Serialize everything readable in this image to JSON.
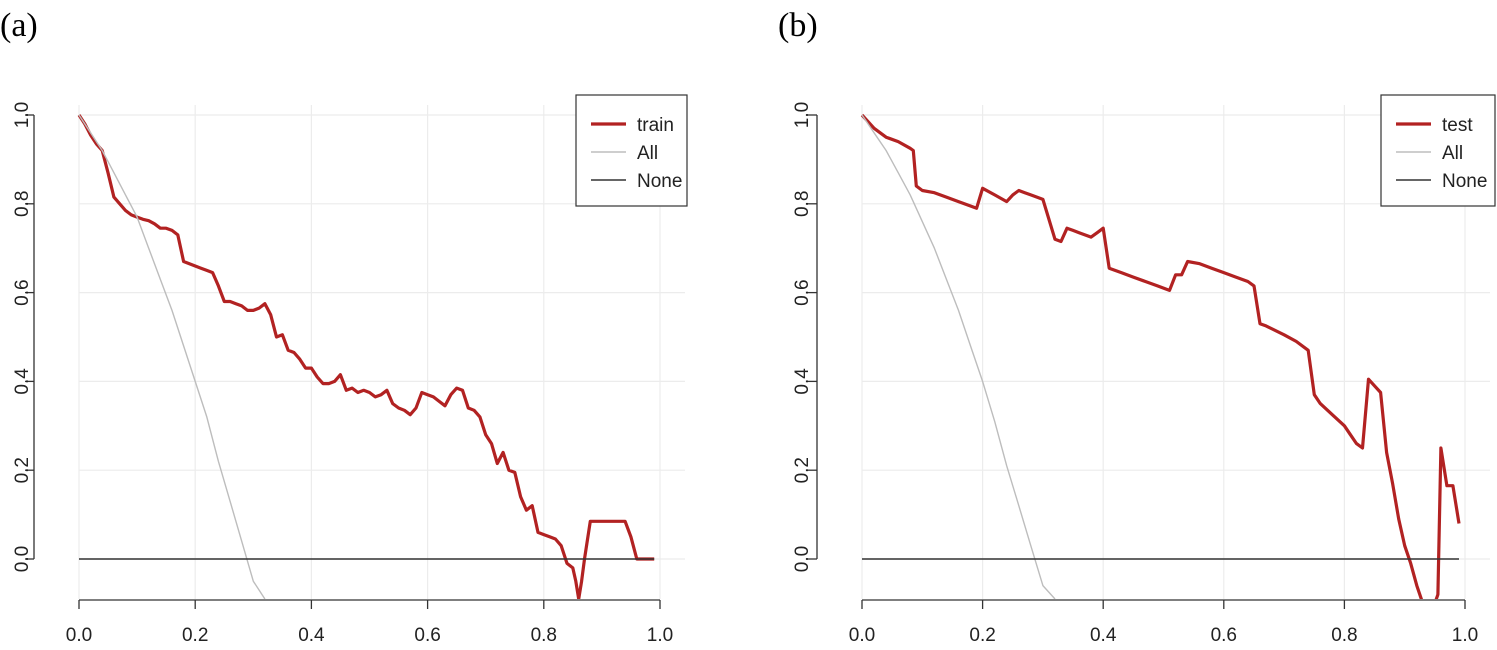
{
  "panels": [
    {
      "label": "(a)"
    },
    {
      "label": "(b)"
    }
  ],
  "colors": {
    "model": "#b22222",
    "all": "#bdbdbd",
    "none": "#333333",
    "grid": "#ececec"
  },
  "chart_data": [
    {
      "type": "line",
      "panel": "(a)",
      "xlim": [
        0,
        1
      ],
      "ylim": [
        -0.09,
        1.0
      ],
      "xticks": [
        "0.0",
        "0.2",
        "0.4",
        "0.6",
        "0.8",
        "1.0"
      ],
      "yticks": [
        "0.0",
        "0.2",
        "0.4",
        "0.6",
        "0.8",
        "1.0"
      ],
      "grid": true,
      "legend": {
        "position": "top-right",
        "entries": [
          "train",
          "All",
          "None"
        ]
      },
      "series": [
        {
          "name": "train",
          "x": [
            0.0,
            0.01,
            0.02,
            0.03,
            0.04,
            0.05,
            0.06,
            0.07,
            0.08,
            0.09,
            0.1,
            0.11,
            0.12,
            0.13,
            0.14,
            0.15,
            0.16,
            0.17,
            0.18,
            0.19,
            0.2,
            0.21,
            0.22,
            0.23,
            0.24,
            0.25,
            0.26,
            0.27,
            0.28,
            0.29,
            0.3,
            0.31,
            0.32,
            0.33,
            0.34,
            0.35,
            0.36,
            0.37,
            0.38,
            0.39,
            0.4,
            0.41,
            0.42,
            0.43,
            0.44,
            0.45,
            0.46,
            0.47,
            0.48,
            0.49,
            0.5,
            0.51,
            0.52,
            0.53,
            0.54,
            0.55,
            0.56,
            0.57,
            0.58,
            0.59,
            0.6,
            0.61,
            0.62,
            0.63,
            0.64,
            0.65,
            0.66,
            0.67,
            0.68,
            0.69,
            0.7,
            0.71,
            0.72,
            0.73,
            0.74,
            0.75,
            0.76,
            0.77,
            0.78,
            0.79,
            0.8,
            0.81,
            0.82,
            0.83,
            0.84,
            0.85,
            0.855,
            0.86,
            0.865,
            0.87,
            0.88,
            0.9,
            0.92,
            0.93,
            0.94,
            0.95,
            0.96,
            0.97,
            0.98,
            0.99
          ],
          "y": [
            1.0,
            0.98,
            0.955,
            0.935,
            0.92,
            0.87,
            0.815,
            0.8,
            0.785,
            0.775,
            0.77,
            0.765,
            0.762,
            0.755,
            0.745,
            0.745,
            0.74,
            0.73,
            0.67,
            0.665,
            0.66,
            0.655,
            0.65,
            0.645,
            0.615,
            0.58,
            0.58,
            0.575,
            0.57,
            0.56,
            0.56,
            0.565,
            0.575,
            0.55,
            0.5,
            0.505,
            0.47,
            0.465,
            0.45,
            0.43,
            0.43,
            0.41,
            0.395,
            0.395,
            0.4,
            0.415,
            0.38,
            0.385,
            0.375,
            0.38,
            0.375,
            0.365,
            0.37,
            0.38,
            0.35,
            0.34,
            0.335,
            0.325,
            0.34,
            0.375,
            0.37,
            0.365,
            0.355,
            0.345,
            0.37,
            0.385,
            0.38,
            0.34,
            0.335,
            0.32,
            0.28,
            0.26,
            0.215,
            0.24,
            0.2,
            0.195,
            0.14,
            0.11,
            0.12,
            0.06,
            0.055,
            0.05,
            0.045,
            0.03,
            -0.01,
            -0.02,
            -0.05,
            -0.09,
            -0.05,
            0.0,
            0.085,
            0.085,
            0.085,
            0.085,
            0.085,
            0.05,
            0.0,
            0.0,
            0.0,
            0.0
          ]
        },
        {
          "name": "All",
          "x": [
            0.0,
            0.02,
            0.04,
            0.06,
            0.08,
            0.1,
            0.12,
            0.14,
            0.16,
            0.18,
            0.2,
            0.22,
            0.24,
            0.26,
            0.28,
            0.3,
            0.32
          ],
          "y": [
            1.0,
            0.96,
            0.92,
            0.87,
            0.82,
            0.77,
            0.7,
            0.63,
            0.56,
            0.48,
            0.4,
            0.32,
            0.22,
            0.13,
            0.04,
            -0.05,
            -0.09
          ]
        },
        {
          "name": "None",
          "x": [
            0.0,
            0.99
          ],
          "y": [
            0.0,
            0.0
          ]
        }
      ]
    },
    {
      "type": "line",
      "panel": "(b)",
      "xlim": [
        0,
        1
      ],
      "ylim": [
        -0.09,
        1.0
      ],
      "xticks": [
        "0.0",
        "0.2",
        "0.4",
        "0.6",
        "0.8",
        "1.0"
      ],
      "yticks": [
        "0.0",
        "0.2",
        "0.4",
        "0.6",
        "0.8",
        "1.0"
      ],
      "grid": true,
      "legend": {
        "position": "top-right",
        "entries": [
          "test",
          "All",
          "None"
        ]
      },
      "series": [
        {
          "name": "test",
          "x": [
            0.0,
            0.02,
            0.04,
            0.06,
            0.08,
            0.085,
            0.09,
            0.1,
            0.12,
            0.14,
            0.16,
            0.18,
            0.19,
            0.2,
            0.22,
            0.24,
            0.25,
            0.26,
            0.27,
            0.28,
            0.29,
            0.3,
            0.32,
            0.33,
            0.34,
            0.35,
            0.36,
            0.38,
            0.39,
            0.4,
            0.41,
            0.43,
            0.45,
            0.47,
            0.49,
            0.51,
            0.52,
            0.53,
            0.54,
            0.56,
            0.58,
            0.6,
            0.62,
            0.64,
            0.65,
            0.66,
            0.67,
            0.7,
            0.72,
            0.74,
            0.75,
            0.76,
            0.78,
            0.8,
            0.81,
            0.82,
            0.83,
            0.84,
            0.85,
            0.86,
            0.87,
            0.88,
            0.89,
            0.9,
            0.91,
            0.92,
            0.93,
            0.94,
            0.95,
            0.955,
            0.96,
            0.97,
            0.98,
            0.99
          ],
          "y": [
            1.0,
            0.97,
            0.95,
            0.94,
            0.925,
            0.92,
            0.84,
            0.83,
            0.825,
            0.815,
            0.805,
            0.795,
            0.79,
            0.835,
            0.82,
            0.805,
            0.82,
            0.83,
            0.825,
            0.82,
            0.815,
            0.81,
            0.72,
            0.715,
            0.745,
            0.74,
            0.735,
            0.725,
            0.735,
            0.745,
            0.655,
            0.645,
            0.635,
            0.625,
            0.615,
            0.605,
            0.64,
            0.64,
            0.67,
            0.665,
            0.655,
            0.645,
            0.635,
            0.625,
            0.615,
            0.53,
            0.525,
            0.505,
            0.49,
            0.47,
            0.37,
            0.35,
            0.325,
            0.3,
            0.28,
            0.26,
            0.25,
            0.405,
            0.39,
            0.375,
            0.24,
            0.17,
            0.09,
            0.03,
            -0.01,
            -0.06,
            -0.1,
            -0.1,
            -0.1,
            -0.08,
            0.25,
            0.165,
            0.165,
            0.08
          ]
        },
        {
          "name": "All",
          "x": [
            0.0,
            0.02,
            0.04,
            0.06,
            0.08,
            0.1,
            0.12,
            0.14,
            0.16,
            0.18,
            0.2,
            0.22,
            0.24,
            0.26,
            0.28,
            0.3,
            0.32
          ],
          "y": [
            1.0,
            0.96,
            0.92,
            0.87,
            0.82,
            0.76,
            0.7,
            0.63,
            0.56,
            0.48,
            0.4,
            0.31,
            0.21,
            0.12,
            0.03,
            -0.06,
            -0.09
          ]
        },
        {
          "name": "None",
          "x": [
            0.0,
            0.99
          ],
          "y": [
            0.0,
            0.0
          ]
        }
      ]
    }
  ]
}
